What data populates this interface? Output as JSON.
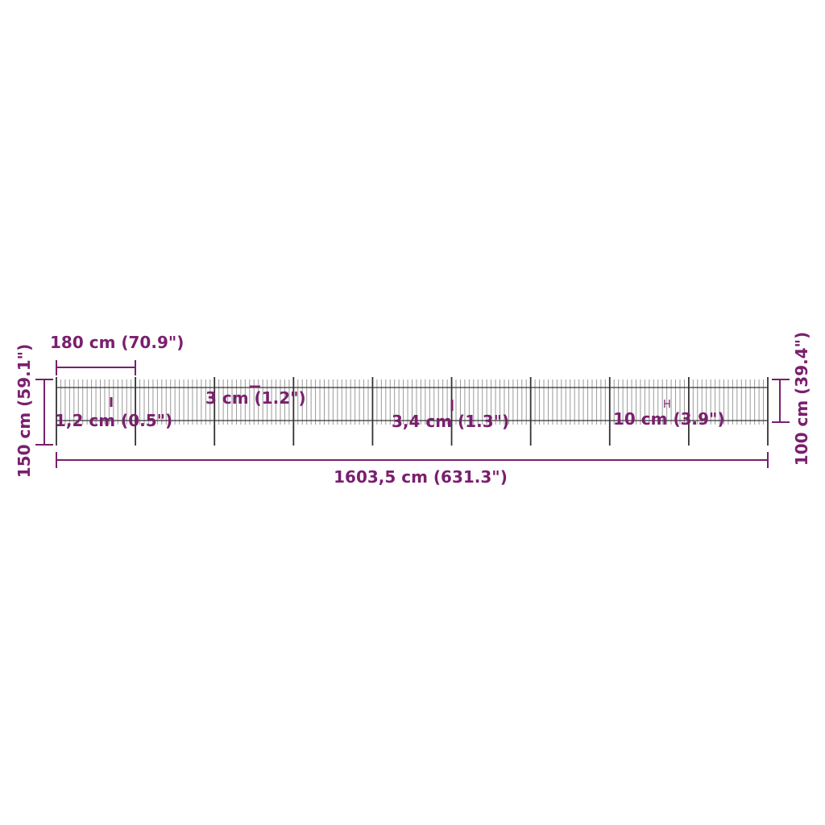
{
  "colors": {
    "dimension": "#7a1f6e",
    "fence": "#333333",
    "picket": "#9a9a9a"
  },
  "labels": {
    "panel_width": "180 cm (70.9\")",
    "total_height": "150 cm (59.1\")",
    "fence_height": "100 cm (39.4\")",
    "total_length": "1603,5 cm (631.3\")",
    "picket_thickness": "1,2 cm (0.5\")",
    "picket_spacing": "3 cm (1.2\")",
    "post_diameter": "3,4 cm (1.3\")",
    "picket_gap": "10 cm (3.9\")"
  },
  "fence": {
    "panels": 9
  }
}
